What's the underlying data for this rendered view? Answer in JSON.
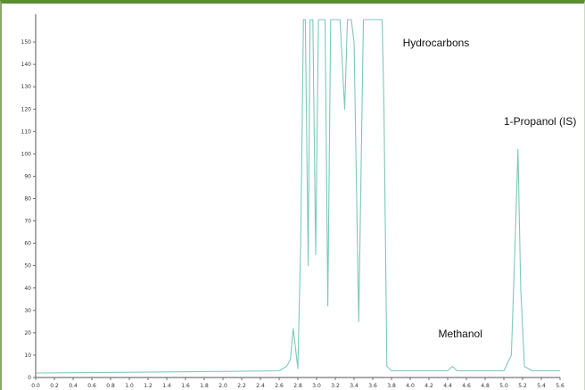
{
  "chart_data": {
    "type": "line",
    "title": "",
    "xlabel": "",
    "ylabel": "",
    "grid": false,
    "legend": "none",
    "xlim": [
      0.0,
      5.6
    ],
    "ylim": [
      0,
      160
    ],
    "x_ticks": [
      0.0,
      0.2,
      0.4,
      0.6,
      0.8,
      1.0,
      1.2,
      1.4,
      1.6,
      1.8,
      2.0,
      2.2,
      2.4,
      2.6,
      2.8,
      3.0,
      3.2,
      3.4,
      3.6,
      3.8,
      4.0,
      4.2,
      4.4,
      4.6,
      4.8,
      5.0,
      5.2,
      5.4,
      5.6
    ],
    "y_ticks": [
      0,
      10,
      20,
      30,
      40,
      50,
      60,
      70,
      80,
      90,
      100,
      110,
      120,
      130,
      140,
      150
    ],
    "annotations": [
      {
        "text": "Hydrocarbons",
        "x": 3.92,
        "y": 148
      },
      {
        "text": "Methanol",
        "x": 4.3,
        "y": 18
      },
      {
        "text": "1-Propanol (IS)",
        "x": 5.0,
        "y": 113
      }
    ],
    "series": [
      {
        "color": "#7ec8b8",
        "x": [
          0.0,
          1.0,
          2.0,
          2.6,
          2.68,
          2.72,
          2.75,
          2.8,
          2.83,
          2.86,
          2.88,
          2.91,
          2.93,
          2.96,
          2.99,
          3.02,
          3.05,
          3.09,
          3.12,
          3.15,
          3.18,
          3.25,
          3.3,
          3.33,
          3.37,
          3.4,
          3.45,
          3.5,
          3.52,
          3.54,
          3.6,
          3.64,
          3.7,
          3.72,
          3.75,
          3.8,
          4.0,
          4.4,
          4.45,
          4.5,
          4.7,
          5.0,
          5.08,
          5.12,
          5.15,
          5.18,
          5.22,
          5.3,
          5.5,
          5.6
        ],
        "y": [
          2,
          2.3,
          2.7,
          3,
          5,
          8,
          22,
          4,
          60,
          160,
          160,
          50,
          160,
          160,
          55,
          160,
          160,
          160,
          32,
          160,
          160,
          160,
          120,
          160,
          160,
          150,
          25,
          160,
          160,
          160,
          160,
          160,
          160,
          120,
          5,
          3,
          3,
          3,
          5,
          3,
          3,
          3,
          10,
          60,
          102,
          40,
          5,
          3,
          3,
          3
        ]
      }
    ]
  }
}
